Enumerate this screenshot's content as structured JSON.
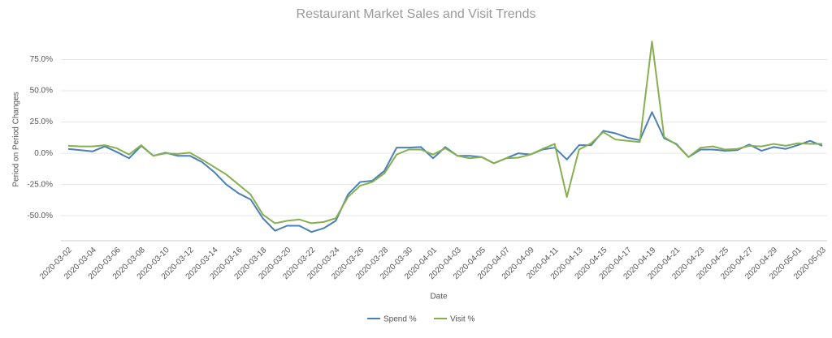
{
  "chart_data": {
    "type": "line",
    "title": "Restaurant Market Sales and Visit Trends",
    "x_label": "Date",
    "y_label": "Period on Period Changes",
    "categories": [
      "2020-03-02",
      null,
      "2020-03-04",
      null,
      "2020-03-06",
      null,
      "2020-03-08",
      null,
      "2020-03-10",
      null,
      "2020-03-12",
      null,
      "2020-03-14",
      null,
      "2020-03-16",
      null,
      "2020-03-18",
      null,
      "2020-03-20",
      null,
      "2020-03-22",
      null,
      "2020-03-24",
      null,
      "2020-03-26",
      null,
      "2020-03-28",
      null,
      "2020-03-30",
      null,
      "2020-04-01",
      null,
      "2020-04-03",
      null,
      "2020-04-05",
      null,
      "2020-04-07",
      null,
      "2020-04-09",
      null,
      "2020-04-11",
      null,
      "2020-04-13",
      null,
      "2020-04-15",
      null,
      "2020-04-17",
      null,
      "2020-04-19",
      null,
      "2020-04-21",
      null,
      "2020-04-23",
      null,
      "2020-04-25",
      null,
      "2020-04-27",
      null,
      "2020-04-29",
      null,
      "2020-05-01",
      null,
      "2020-05-03"
    ],
    "series": [
      {
        "name": "Spend %",
        "color": "#4a7fb8",
        "values": [
          3.5,
          2.5,
          1.5,
          5.5,
          1,
          -4,
          6,
          -2,
          0.5,
          -2,
          -2,
          -7,
          -15,
          -25,
          -32,
          -37,
          -52,
          -62,
          -58,
          -58,
          -63,
          -60,
          -54,
          -33,
          -23,
          -22,
          -14,
          4.5,
          4.5,
          5,
          -4,
          5,
          -2,
          -2,
          -3,
          -8,
          -4,
          0,
          -1,
          3,
          4.5,
          -5,
          6.5,
          6.5,
          18,
          16,
          12.5,
          10.5,
          33,
          12,
          7.5,
          -3,
          3,
          3,
          2,
          2.5,
          7,
          2,
          5,
          3.5,
          6.5,
          10,
          6
        ]
      },
      {
        "name": "Visit %",
        "color": "#86b04e",
        "values": [
          6,
          5.5,
          5.5,
          6.5,
          4,
          -1,
          6.5,
          -2,
          0,
          -0.5,
          0.5,
          -5,
          -11,
          -17,
          -25,
          -33,
          -49,
          -56,
          -54,
          -53,
          -56,
          -55,
          -52,
          -35,
          -26,
          -23,
          -16,
          -1,
          3,
          3,
          -1,
          4,
          -2,
          -4,
          -3,
          -8,
          -4,
          -3.5,
          -1,
          3.5,
          7.5,
          -35,
          3,
          8,
          17,
          11,
          10,
          9,
          89.5,
          13,
          7,
          -3,
          4.5,
          5.5,
          3,
          3.5,
          6,
          5.5,
          7.5,
          6,
          8,
          7.5,
          7.5
        ]
      }
    ],
    "ylim": [
      -70,
      100
    ],
    "yticks": [
      {
        "value": -50,
        "label": "-50.0%"
      },
      {
        "value": -25,
        "label": "-25.0%"
      },
      {
        "value": 0,
        "label": "0.0%"
      },
      {
        "value": 25,
        "label": "25.0%"
      },
      {
        "value": 50,
        "label": "50.0%"
      },
      {
        "value": 75,
        "label": "75.0%"
      }
    ],
    "grid": true,
    "legend": "bottom"
  }
}
